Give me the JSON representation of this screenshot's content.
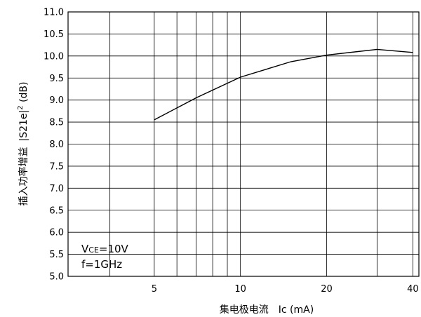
{
  "chart_data": {
    "type": "line",
    "x_scale": "log",
    "xlim": [
      2.5,
      42
    ],
    "ylim": [
      5.0,
      11.0
    ],
    "y_ticks": [
      "11.0",
      "10.5",
      "10.0",
      "9.5",
      "9.0",
      "8.5",
      "8.0",
      "7.5",
      "7.0",
      "6.5",
      "6.0",
      "5.5",
      "5.0"
    ],
    "x_ticks": [
      "5",
      "10",
      "20",
      "40"
    ],
    "x_gridlines": [
      3.5,
      5,
      6,
      7,
      8,
      9,
      10,
      20,
      30,
      40
    ],
    "grid": true,
    "series": [
      {
        "x": [
          5,
          7,
          10,
          15,
          20,
          30,
          40
        ],
        "y": [
          8.55,
          9.05,
          9.52,
          9.87,
          10.02,
          10.15,
          10.08
        ]
      }
    ],
    "xlabel_cn": "集电极电流",
    "xlabel_en": "Ic (mA)",
    "ylabel_cn": "插入功率增益",
    "ylabel_en_pre": "|S21e|",
    "ylabel_sup": "2",
    "ylabel_en_post": " (dB)",
    "annotation": {
      "line1_v": "V",
      "line1_sub": "CE",
      "line1_rest": "=10V",
      "line2": "f=1GHz"
    },
    "colors": {
      "line": "#000000",
      "grid": "#000000",
      "background": "#ffffff"
    }
  }
}
